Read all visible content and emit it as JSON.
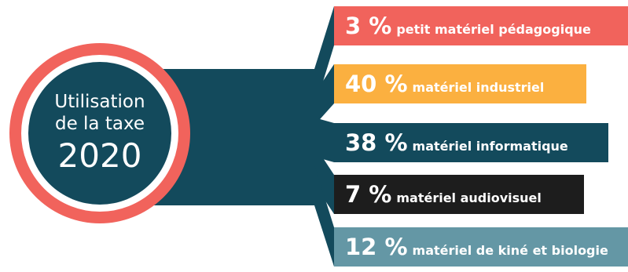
{
  "center": {
    "line1": "Utilisation",
    "line2": "de la taxe",
    "year": "2020"
  },
  "items": [
    {
      "percent": "3 %",
      "label": "petit matériel pédagogique",
      "color": "#f1635c",
      "value": 3
    },
    {
      "percent": "40 %",
      "label": "matériel industriel",
      "color": "#fbb040",
      "value": 40
    },
    {
      "percent": "38 %",
      "label": "matériel informatique",
      "color": "#134a5c",
      "value": 38
    },
    {
      "percent": "7 %",
      "label": "matériel audiovisuel",
      "color": "#1d1d1d",
      "value": 7
    },
    {
      "percent": "12 %",
      "label": "matériel de kiné et biologie",
      "color": "#6497a5",
      "value": 12
    }
  ],
  "colors": {
    "connector": "#134a5c",
    "ring": "#f1635c"
  }
}
